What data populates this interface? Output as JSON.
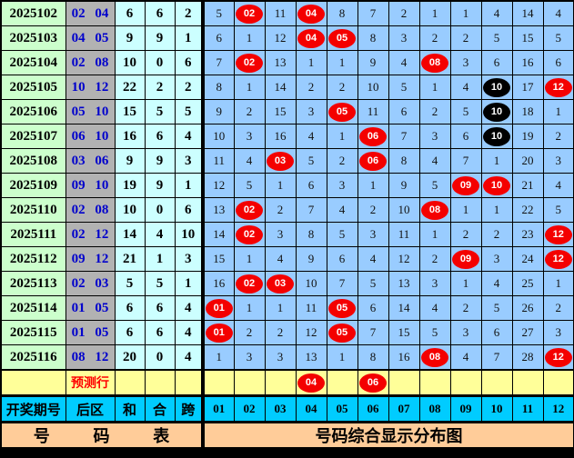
{
  "colors": {
    "period_bg": "#ccffcc",
    "back_zone_bg": "#b2b2b2",
    "back_zone_text": "#0000cc",
    "calc_bg": "#ccffff",
    "number_cell_bg": "#99ccff",
    "hit_red": "#f40000",
    "hit_black": "#000000",
    "prediction_bg": "#ffff99",
    "prediction_text": "#ff0000",
    "header_bg": "#00ccff",
    "footer_bg": "#ffcc99"
  },
  "header": {
    "period": "开奖期号",
    "back_zone": "后区",
    "sum": "和",
    "tail": "合",
    "span": "跨",
    "numbers": [
      "01",
      "02",
      "03",
      "04",
      "05",
      "06",
      "07",
      "08",
      "09",
      "10",
      "11",
      "12"
    ]
  },
  "rows": [
    {
      "period": "2025102",
      "back": "02 04",
      "sum": "6",
      "tail": "6",
      "span": "2",
      "cells": [
        "5",
        {
          "t": "02",
          "c": "red"
        },
        "11",
        {
          "t": "04",
          "c": "red"
        },
        "8",
        "7",
        "2",
        "1",
        "1",
        "4",
        "14",
        "4"
      ]
    },
    {
      "period": "2025103",
      "back": "04 05",
      "sum": "9",
      "tail": "9",
      "span": "1",
      "cells": [
        "6",
        "1",
        "12",
        {
          "t": "04",
          "c": "red"
        },
        {
          "t": "05",
          "c": "red"
        },
        "8",
        "3",
        "2",
        "2",
        "5",
        "15",
        "5"
      ]
    },
    {
      "period": "2025104",
      "back": "02 08",
      "sum": "10",
      "tail": "0",
      "span": "6",
      "cells": [
        "7",
        {
          "t": "02",
          "c": "red"
        },
        "13",
        "1",
        "1",
        "9",
        "4",
        {
          "t": "08",
          "c": "red"
        },
        "3",
        "6",
        "16",
        "6"
      ]
    },
    {
      "period": "2025105",
      "back": "10 12",
      "sum": "22",
      "tail": "2",
      "span": "2",
      "cells": [
        "8",
        "1",
        "14",
        "2",
        "2",
        "10",
        "5",
        "1",
        "4",
        {
          "t": "10",
          "c": "black"
        },
        "17",
        {
          "t": "12",
          "c": "red"
        }
      ]
    },
    {
      "period": "2025106",
      "back": "05 10",
      "sum": "15",
      "tail": "5",
      "span": "5",
      "cells": [
        "9",
        "2",
        "15",
        "3",
        {
          "t": "05",
          "c": "red"
        },
        "11",
        "6",
        "2",
        "5",
        {
          "t": "10",
          "c": "black"
        },
        "18",
        "1"
      ]
    },
    {
      "period": "2025107",
      "back": "06 10",
      "sum": "16",
      "tail": "6",
      "span": "4",
      "cells": [
        "10",
        "3",
        "16",
        "4",
        "1",
        {
          "t": "06",
          "c": "red"
        },
        "7",
        "3",
        "6",
        {
          "t": "10",
          "c": "black"
        },
        "19",
        "2"
      ]
    },
    {
      "period": "2025108",
      "back": "03 06",
      "sum": "9",
      "tail": "9",
      "span": "3",
      "cells": [
        "11",
        "4",
        {
          "t": "03",
          "c": "red"
        },
        "5",
        "2",
        {
          "t": "06",
          "c": "red"
        },
        "8",
        "4",
        "7",
        "1",
        "20",
        "3"
      ]
    },
    {
      "period": "2025109",
      "back": "09 10",
      "sum": "19",
      "tail": "9",
      "span": "1",
      "cells": [
        "12",
        "5",
        "1",
        "6",
        "3",
        "1",
        "9",
        "5",
        {
          "t": "09",
          "c": "red"
        },
        {
          "t": "10",
          "c": "red"
        },
        "21",
        "4"
      ]
    },
    {
      "period": "2025110",
      "back": "02 08",
      "sum": "10",
      "tail": "0",
      "span": "6",
      "cells": [
        "13",
        {
          "t": "02",
          "c": "red"
        },
        "2",
        "7",
        "4",
        "2",
        "10",
        {
          "t": "08",
          "c": "red"
        },
        "1",
        "1",
        "22",
        "5"
      ]
    },
    {
      "period": "2025111",
      "back": "02 12",
      "sum": "14",
      "tail": "4",
      "span": "10",
      "cells": [
        "14",
        {
          "t": "02",
          "c": "red"
        },
        "3",
        "8",
        "5",
        "3",
        "11",
        "1",
        "2",
        "2",
        "23",
        {
          "t": "12",
          "c": "red"
        }
      ]
    },
    {
      "period": "2025112",
      "back": "09 12",
      "sum": "21",
      "tail": "1",
      "span": "3",
      "cells": [
        "15",
        "1",
        "4",
        "9",
        "6",
        "4",
        "12",
        "2",
        {
          "t": "09",
          "c": "red"
        },
        "3",
        "24",
        {
          "t": "12",
          "c": "red"
        }
      ]
    },
    {
      "period": "2025113",
      "back": "02 03",
      "sum": "5",
      "tail": "5",
      "span": "1",
      "cells": [
        "16",
        {
          "t": "02",
          "c": "red"
        },
        {
          "t": "03",
          "c": "red"
        },
        "10",
        "7",
        "5",
        "13",
        "3",
        "1",
        "4",
        "25",
        "1"
      ]
    },
    {
      "period": "2025114",
      "back": "01 05",
      "sum": "6",
      "tail": "6",
      "span": "4",
      "cells": [
        {
          "t": "01",
          "c": "red"
        },
        "1",
        "1",
        "11",
        {
          "t": "05",
          "c": "red"
        },
        "6",
        "14",
        "4",
        "2",
        "5",
        "26",
        "2"
      ]
    },
    {
      "period": "2025115",
      "back": "01 05",
      "sum": "6",
      "tail": "6",
      "span": "4",
      "cells": [
        {
          "t": "01",
          "c": "red"
        },
        "2",
        "2",
        "12",
        {
          "t": "05",
          "c": "red"
        },
        "7",
        "15",
        "5",
        "3",
        "6",
        "27",
        "3"
      ]
    },
    {
      "period": "2025116",
      "back": "08 12",
      "sum": "20",
      "tail": "0",
      "span": "4",
      "cells": [
        "1",
        "3",
        "3",
        "13",
        "1",
        "8",
        "16",
        {
          "t": "08",
          "c": "red"
        },
        "4",
        "7",
        "28",
        {
          "t": "12",
          "c": "red"
        }
      ]
    }
  ],
  "prediction": {
    "label": "预测行",
    "cells": [
      null,
      null,
      null,
      {
        "t": "04",
        "c": "red"
      },
      null,
      {
        "t": "06",
        "c": "red"
      },
      null,
      null,
      null,
      null,
      null,
      null
    ]
  },
  "footer": {
    "left": "号 码 表",
    "right": "号码综合显示分布图"
  },
  "chart_data": {
    "type": "table",
    "title": "号码综合显示分布图",
    "description": "Lottery back-zone (后区 01-12) hit/miss distribution chart. Circled values are drawn numbers (red = hit, black = repeat hit); plain numbers are miss counts.",
    "columns": [
      "开奖期号",
      "后区",
      "和",
      "合",
      "跨",
      "01",
      "02",
      "03",
      "04",
      "05",
      "06",
      "07",
      "08",
      "09",
      "10",
      "11",
      "12"
    ],
    "periods": [
      "2025102",
      "2025103",
      "2025104",
      "2025105",
      "2025106",
      "2025107",
      "2025108",
      "2025109",
      "2025110",
      "2025111",
      "2025112",
      "2025113",
      "2025114",
      "2025115",
      "2025116"
    ],
    "back_zone_draws": [
      [
        2,
        4
      ],
      [
        4,
        5
      ],
      [
        2,
        8
      ],
      [
        10,
        12
      ],
      [
        5,
        10
      ],
      [
        6,
        10
      ],
      [
        3,
        6
      ],
      [
        9,
        10
      ],
      [
        2,
        8
      ],
      [
        2,
        12
      ],
      [
        9,
        12
      ],
      [
        2,
        3
      ],
      [
        1,
        5
      ],
      [
        1,
        5
      ],
      [
        8,
        12
      ]
    ],
    "sum": [
      6,
      9,
      10,
      22,
      15,
      16,
      9,
      19,
      10,
      14,
      21,
      5,
      6,
      6,
      20
    ],
    "tail": [
      6,
      9,
      0,
      2,
      5,
      6,
      9,
      9,
      0,
      4,
      1,
      5,
      6,
      6,
      0
    ],
    "span": [
      2,
      1,
      6,
      2,
      5,
      4,
      3,
      1,
      6,
      10,
      3,
      1,
      4,
      4,
      4
    ],
    "black_hits": [
      [
        "2025105",
        10
      ],
      [
        "2025106",
        10
      ],
      [
        "2025107",
        10
      ]
    ],
    "prediction_row": [
      4,
      6
    ]
  }
}
